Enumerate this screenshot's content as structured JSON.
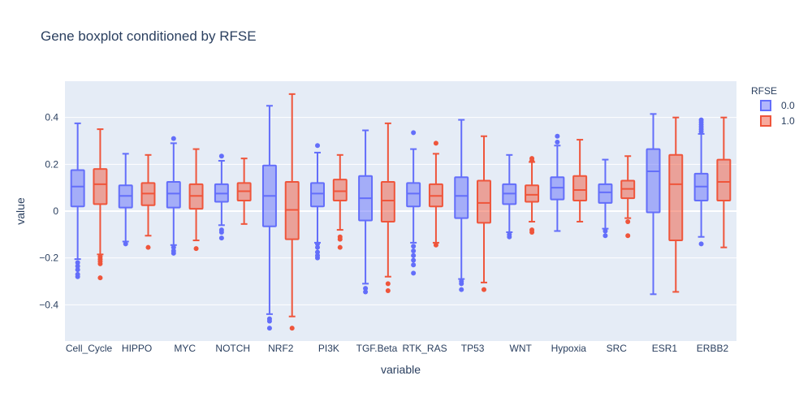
{
  "chart_data": {
    "type": "box",
    "title": "Gene boxplot conditioned by RFSE",
    "xlabel": "variable",
    "ylabel": "value",
    "ylim": [
      -0.555,
      0.555
    ],
    "yticks": [
      -0.4,
      -0.2,
      0,
      0.2,
      0.4
    ],
    "ytick_labels": [
      "−0.4",
      "−0.2",
      "0",
      "0.2",
      "0.4"
    ],
    "grid": true,
    "legend": {
      "title": "RFSE",
      "position": "right"
    },
    "categories": [
      "Cell_Cycle",
      "HIPPO",
      "MYC",
      "NOTCH",
      "NRF2",
      "PI3K",
      "TGF.Beta",
      "RTK_RAS",
      "TP53",
      "WNT",
      "Hypoxia",
      "SRC",
      "ESR1",
      "ERBB2"
    ],
    "series": [
      {
        "name": "0.0",
        "color": "#636efa",
        "fill": "rgba(99,110,250,0.5)",
        "boxes": [
          {
            "lowerfence": -0.205,
            "q1": 0.02,
            "median": 0.105,
            "q3": 0.175,
            "upperfence": 0.375,
            "outliers": [
              -0.22,
              -0.235,
              -0.25,
              -0.27,
              -0.28
            ]
          },
          {
            "lowerfence": -0.13,
            "q1": 0.015,
            "median": 0.065,
            "q3": 0.11,
            "upperfence": 0.245,
            "outliers": [
              -0.14
            ]
          },
          {
            "lowerfence": -0.145,
            "q1": 0.015,
            "median": 0.075,
            "q3": 0.125,
            "upperfence": 0.29,
            "outliers": [
              0.31,
              -0.155,
              -0.17,
              -0.18
            ]
          },
          {
            "lowerfence": -0.06,
            "q1": 0.04,
            "median": 0.075,
            "q3": 0.115,
            "upperfence": 0.215,
            "outliers": [
              0.235,
              -0.08,
              -0.09,
              -0.115
            ]
          },
          {
            "lowerfence": -0.44,
            "q1": -0.065,
            "median": 0.065,
            "q3": 0.195,
            "upperfence": 0.45,
            "outliers": [
              -0.46,
              -0.47,
              -0.5
            ]
          },
          {
            "lowerfence": -0.135,
            "q1": 0.02,
            "median": 0.075,
            "q3": 0.12,
            "upperfence": 0.25,
            "outliers": [
              0.28,
              -0.14,
              -0.155,
              -0.175,
              -0.19,
              -0.2
            ]
          },
          {
            "lowerfence": -0.31,
            "q1": -0.04,
            "median": 0.055,
            "q3": 0.15,
            "upperfence": 0.345,
            "outliers": [
              -0.33,
              -0.345
            ]
          },
          {
            "lowerfence": -0.135,
            "q1": 0.02,
            "median": 0.075,
            "q3": 0.12,
            "upperfence": 0.265,
            "outliers": [
              0.335,
              -0.15,
              -0.17,
              -0.19,
              -0.21,
              -0.23,
              -0.265
            ]
          },
          {
            "lowerfence": -0.29,
            "q1": -0.03,
            "median": 0.065,
            "q3": 0.145,
            "upperfence": 0.39,
            "outliers": [
              -0.3,
              -0.31,
              -0.335
            ]
          },
          {
            "lowerfence": -0.09,
            "q1": 0.03,
            "median": 0.075,
            "q3": 0.115,
            "upperfence": 0.24,
            "outliers": [
              -0.1,
              -0.11
            ]
          },
          {
            "lowerfence": -0.085,
            "q1": 0.05,
            "median": 0.1,
            "q3": 0.145,
            "upperfence": 0.28,
            "outliers": [
              0.295,
              0.32
            ]
          },
          {
            "lowerfence": -0.075,
            "q1": 0.035,
            "median": 0.08,
            "q3": 0.115,
            "upperfence": 0.22,
            "outliers": [
              -0.085,
              -0.105
            ]
          },
          {
            "lowerfence": -0.355,
            "q1": -0.005,
            "median": 0.17,
            "q3": 0.265,
            "upperfence": 0.415,
            "outliers": []
          },
          {
            "lowerfence": -0.11,
            "q1": 0.045,
            "median": 0.105,
            "q3": 0.16,
            "upperfence": 0.33,
            "outliers": [
              0.34,
              0.35,
              0.36,
              0.37,
              0.38,
              0.39,
              -0.14
            ]
          }
        ]
      },
      {
        "name": "1.0",
        "color": "#ef553b",
        "fill": "rgba(239,85,59,0.5)",
        "boxes": [
          {
            "lowerfence": -0.185,
            "q1": 0.03,
            "median": 0.115,
            "q3": 0.18,
            "upperfence": 0.35,
            "outliers": [
              -0.195,
              -0.205,
              -0.215,
              -0.225,
              -0.285
            ]
          },
          {
            "lowerfence": -0.105,
            "q1": 0.025,
            "median": 0.075,
            "q3": 0.12,
            "upperfence": 0.24,
            "outliers": [
              -0.155
            ]
          },
          {
            "lowerfence": -0.125,
            "q1": 0.01,
            "median": 0.065,
            "q3": 0.115,
            "upperfence": 0.265,
            "outliers": [
              -0.16
            ]
          },
          {
            "lowerfence": -0.055,
            "q1": 0.045,
            "median": 0.085,
            "q3": 0.12,
            "upperfence": 0.225,
            "outliers": []
          },
          {
            "lowerfence": -0.45,
            "q1": -0.12,
            "median": 0.005,
            "q3": 0.125,
            "upperfence": 0.5,
            "outliers": [
              -0.5
            ]
          },
          {
            "lowerfence": -0.08,
            "q1": 0.045,
            "median": 0.085,
            "q3": 0.135,
            "upperfence": 0.24,
            "outliers": [
              -0.11,
              -0.12,
              -0.155
            ]
          },
          {
            "lowerfence": -0.28,
            "q1": -0.045,
            "median": 0.045,
            "q3": 0.125,
            "upperfence": 0.375,
            "outliers": [
              -0.31,
              -0.34
            ]
          },
          {
            "lowerfence": -0.135,
            "q1": 0.02,
            "median": 0.065,
            "q3": 0.115,
            "upperfence": 0.245,
            "outliers": [
              0.29,
              -0.145
            ]
          },
          {
            "lowerfence": -0.305,
            "q1": -0.05,
            "median": 0.035,
            "q3": 0.13,
            "upperfence": 0.32,
            "outliers": [
              -0.335
            ]
          },
          {
            "lowerfence": -0.045,
            "q1": 0.04,
            "median": 0.07,
            "q3": 0.11,
            "upperfence": 0.21,
            "outliers": [
              0.215,
              0.225,
              -0.08,
              -0.09
            ]
          },
          {
            "lowerfence": -0.045,
            "q1": 0.045,
            "median": 0.09,
            "q3": 0.15,
            "upperfence": 0.305,
            "outliers": []
          },
          {
            "lowerfence": -0.03,
            "q1": 0.055,
            "median": 0.095,
            "q3": 0.13,
            "upperfence": 0.235,
            "outliers": [
              -0.045,
              -0.105
            ]
          },
          {
            "lowerfence": -0.345,
            "q1": -0.125,
            "median": 0.115,
            "q3": 0.24,
            "upperfence": 0.4,
            "outliers": []
          },
          {
            "lowerfence": -0.155,
            "q1": 0.045,
            "median": 0.125,
            "q3": 0.22,
            "upperfence": 0.4,
            "outliers": []
          }
        ]
      }
    ]
  }
}
